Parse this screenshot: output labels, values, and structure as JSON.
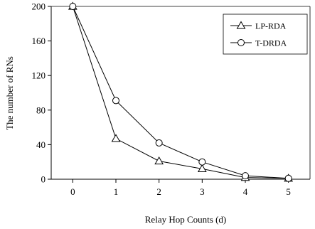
{
  "chart_data": {
    "type": "line",
    "xlabel": "Relay Hop Counts (d)",
    "ylabel": "The number of RNs",
    "x": [
      0,
      1,
      2,
      3,
      4,
      5
    ],
    "xlim": [
      -0.5,
      5.5
    ],
    "ylim": [
      0,
      200
    ],
    "yticks": [
      0,
      40,
      80,
      120,
      160,
      200
    ],
    "grid": false,
    "legend_position": "top-right",
    "series": [
      {
        "name": "LP-RDA",
        "marker": "triangle",
        "values": [
          200,
          47,
          21,
          12,
          2,
          1
        ]
      },
      {
        "name": "T-DRDA",
        "marker": "circle",
        "values": [
          200,
          91,
          42,
          20,
          4,
          1
        ]
      }
    ]
  }
}
